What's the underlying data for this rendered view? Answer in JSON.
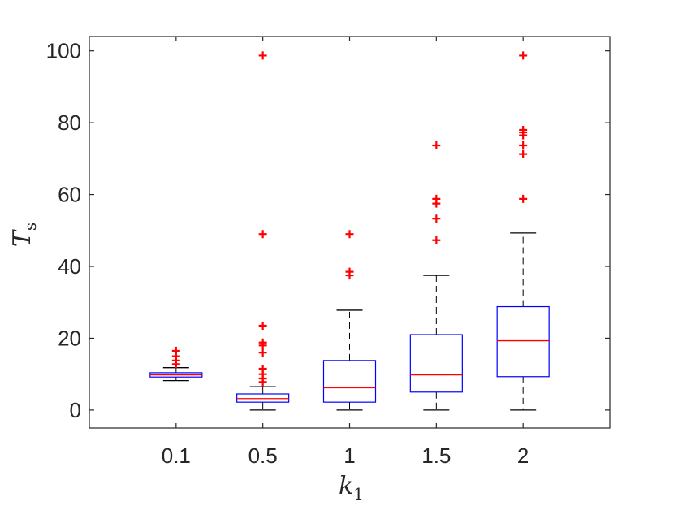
{
  "chart_data": {
    "type": "boxplot",
    "title": "",
    "xlabel": "k",
    "xlabel_subscript": "1",
    "ylabel": "T",
    "ylabel_subscript": "s",
    "categories": [
      "0.1",
      "0.5",
      "1",
      "1.5",
      "2"
    ],
    "ylim": [
      -5,
      104
    ],
    "yticks": [
      0,
      20,
      40,
      60,
      80,
      100
    ],
    "ytick_labels": [
      "0",
      "20",
      "40",
      "60",
      "80",
      "100"
    ],
    "grid": false,
    "colors": {
      "axis": "#262626",
      "box": "#0000ff",
      "median": "#ff0000",
      "whisker": "#000000",
      "outlier": "#ff0000"
    },
    "boxes": [
      {
        "category": "0.1",
        "whisker_low": 8.2,
        "q1": 9.2,
        "median": 9.8,
        "q3": 10.4,
        "whisker_high": 11.8,
        "outliers": [
          12.8,
          13.8,
          15.0,
          16.5
        ]
      },
      {
        "category": "0.5",
        "whisker_low": 0.0,
        "q1": 2.2,
        "median": 3.2,
        "q3": 4.5,
        "whisker_high": 6.5,
        "outliers": [
          7.8,
          8.8,
          10.0,
          11.5,
          16.0,
          18.0,
          18.8,
          23.5,
          49.0,
          98.7
        ]
      },
      {
        "category": "1",
        "whisker_low": 0.0,
        "q1": 2.2,
        "median": 6.2,
        "q3": 13.8,
        "whisker_high": 27.8,
        "outliers": [
          37.5,
          38.5,
          49.0
        ]
      },
      {
        "category": "1.5",
        "whisker_low": 0.0,
        "q1": 5.0,
        "median": 9.8,
        "q3": 21.0,
        "whisker_high": 37.5,
        "outliers": [
          47.3,
          53.3,
          57.5,
          58.8,
          73.7
        ]
      },
      {
        "category": "2",
        "whisker_low": 0.0,
        "q1": 9.3,
        "median": 19.3,
        "q3": 28.8,
        "whisker_high": 49.3,
        "outliers": [
          58.8,
          71.3,
          73.7,
          76.5,
          77.3,
          78.0,
          98.7
        ]
      }
    ]
  }
}
